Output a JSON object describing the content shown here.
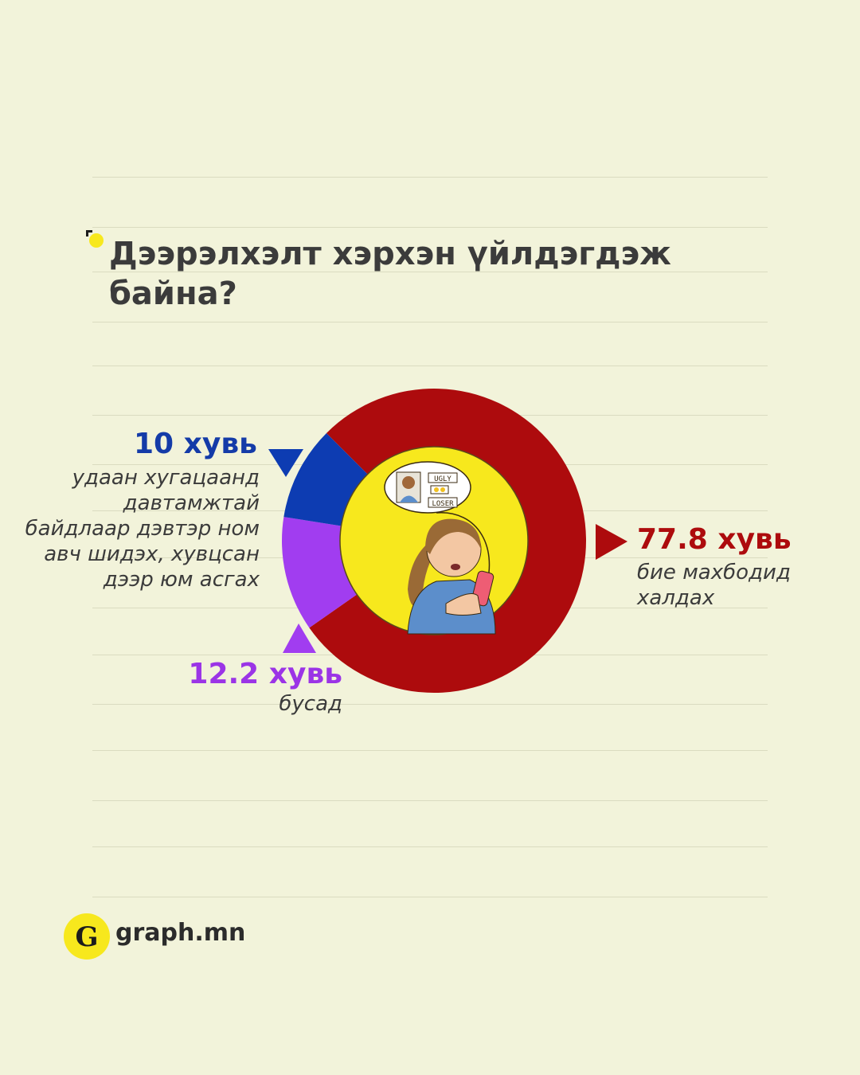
{
  "title": "Дээрэлхэлт хэрхэн үйлдэгдэж байна?",
  "chart_data": {
    "type": "pie",
    "slices": [
      {
        "value": 77.8,
        "label": "77.8 хувь",
        "description": "бие махбодид халдах",
        "color": "#ad0b0d"
      },
      {
        "value": 12.2,
        "label": "12.2 хувь",
        "description": "бусад",
        "color": "#a13df0"
      },
      {
        "value": 10,
        "label": "10 хувь",
        "description": "удаан хугацаанд давтамжтай байдлаар дэвтэр ном авч шидэх, хувцсан дээр юм асгах",
        "color": "#0d3cb2"
      }
    ]
  },
  "illustration": {
    "bubble_words": [
      "UGLY",
      "LOSER"
    ]
  },
  "brand": {
    "logo_letter": "G",
    "name": "graph.mn"
  },
  "colors": {
    "background": "#f2f3da",
    "accent_yellow": "#f7e81d"
  }
}
